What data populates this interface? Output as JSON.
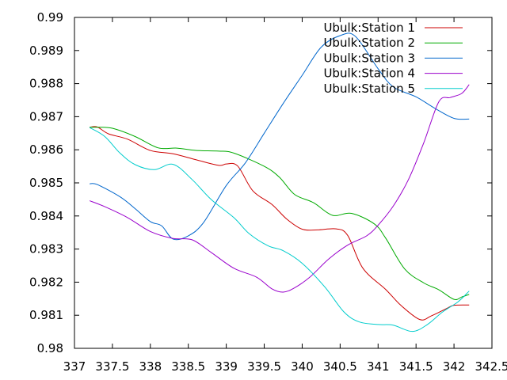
{
  "chart_data": {
    "type": "line",
    "title": "",
    "xlabel": "",
    "ylabel": "",
    "xlim": [
      337,
      342.5
    ],
    "ylim": [
      0.98,
      0.99
    ],
    "x_ticks": [
      "337",
      "337.5",
      "338",
      "338.5",
      "339",
      "339.5",
      "340",
      "340.5",
      "341",
      "341.5",
      "342",
      "342.5"
    ],
    "y_ticks": [
      "0.98",
      "0.981",
      "0.982",
      "0.983",
      "0.984",
      "0.985",
      "0.986",
      "0.987",
      "0.988",
      "0.989",
      "0.99"
    ],
    "grid": false,
    "legend_position": "top-right",
    "series": [
      {
        "name": "Ubulk:Station 1",
        "color": "#cc0000",
        "points": [
          [
            337.2,
            0.98668
          ],
          [
            337.3,
            0.98669
          ],
          [
            337.45,
            0.98648
          ],
          [
            337.7,
            0.98632
          ],
          [
            338.0,
            0.98598
          ],
          [
            338.3,
            0.98588
          ],
          [
            338.6,
            0.9857
          ],
          [
            338.9,
            0.98553
          ],
          [
            339.0,
            0.98557
          ],
          [
            339.15,
            0.98551
          ],
          [
            339.35,
            0.98476
          ],
          [
            339.6,
            0.98435
          ],
          [
            339.8,
            0.9839
          ],
          [
            340.0,
            0.9836
          ],
          [
            340.2,
            0.98358
          ],
          [
            340.45,
            0.98361
          ],
          [
            340.6,
            0.98341
          ],
          [
            340.8,
            0.98242
          ],
          [
            341.1,
            0.98178
          ],
          [
            341.3,
            0.9813
          ],
          [
            341.55,
            0.98087
          ],
          [
            341.7,
            0.98098
          ],
          [
            341.9,
            0.9812
          ],
          [
            342.0,
            0.9813
          ],
          [
            342.2,
            0.98131
          ]
        ]
      },
      {
        "name": "Ubulk:Station 2",
        "color": "#00aa00",
        "points": [
          [
            337.2,
            0.98668
          ],
          [
            337.3,
            0.98668
          ],
          [
            337.5,
            0.98665
          ],
          [
            337.8,
            0.9864
          ],
          [
            338.1,
            0.98606
          ],
          [
            338.35,
            0.98605
          ],
          [
            338.6,
            0.98598
          ],
          [
            338.9,
            0.98596
          ],
          [
            339.1,
            0.9859
          ],
          [
            339.5,
            0.9855
          ],
          [
            339.7,
            0.98517
          ],
          [
            339.9,
            0.98465
          ],
          [
            340.15,
            0.9844
          ],
          [
            340.4,
            0.98402
          ],
          [
            340.65,
            0.98408
          ],
          [
            340.95,
            0.98376
          ],
          [
            341.1,
            0.98333
          ],
          [
            341.35,
            0.9824
          ],
          [
            341.6,
            0.98198
          ],
          [
            341.8,
            0.98177
          ],
          [
            342.0,
            0.98148
          ],
          [
            342.1,
            0.98155
          ],
          [
            342.2,
            0.98163
          ]
        ]
      },
      {
        "name": "Ubulk:Station 3",
        "color": "#0066cc",
        "points": [
          [
            337.2,
            0.98497
          ],
          [
            337.3,
            0.98495
          ],
          [
            337.6,
            0.98458
          ],
          [
            337.8,
            0.98422
          ],
          [
            338.0,
            0.98383
          ],
          [
            338.15,
            0.9837
          ],
          [
            338.3,
            0.9833
          ],
          [
            338.5,
            0.9834
          ],
          [
            338.7,
            0.9838
          ],
          [
            339.0,
            0.98492
          ],
          [
            339.25,
            0.9856
          ],
          [
            339.5,
            0.9865
          ],
          [
            339.75,
            0.9874
          ],
          [
            340.0,
            0.98825
          ],
          [
            340.25,
            0.9891
          ],
          [
            340.5,
            0.98945
          ],
          [
            340.7,
            0.98943
          ],
          [
            341.0,
            0.98845
          ],
          [
            341.2,
            0.9879
          ],
          [
            341.5,
            0.9876
          ],
          [
            341.75,
            0.98725
          ],
          [
            342.0,
            0.98695
          ],
          [
            342.2,
            0.98693
          ]
        ]
      },
      {
        "name": "Ubulk:Station 4",
        "color": "#9900cc",
        "points": [
          [
            337.2,
            0.98446
          ],
          [
            337.4,
            0.98428
          ],
          [
            337.7,
            0.98395
          ],
          [
            338.0,
            0.98353
          ],
          [
            338.3,
            0.98332
          ],
          [
            338.55,
            0.98328
          ],
          [
            338.8,
            0.9829
          ],
          [
            339.1,
            0.98242
          ],
          [
            339.4,
            0.98215
          ],
          [
            339.6,
            0.9818
          ],
          [
            339.75,
            0.9817
          ],
          [
            339.9,
            0.98183
          ],
          [
            340.1,
            0.98215
          ],
          [
            340.35,
            0.9827
          ],
          [
            340.6,
            0.98312
          ],
          [
            340.85,
            0.9834
          ],
          [
            341.0,
            0.98372
          ],
          [
            341.2,
            0.9843
          ],
          [
            341.4,
            0.9851
          ],
          [
            341.6,
            0.9862
          ],
          [
            341.8,
            0.98745
          ],
          [
            341.95,
            0.98758
          ],
          [
            342.1,
            0.9877
          ],
          [
            342.2,
            0.98797
          ]
        ]
      },
      {
        "name": "Ubulk:Station 5",
        "color": "#00cccc",
        "points": [
          [
            337.2,
            0.98667
          ],
          [
            337.4,
            0.9864
          ],
          [
            337.6,
            0.9859
          ],
          [
            337.8,
            0.98555
          ],
          [
            338.05,
            0.9854
          ],
          [
            338.3,
            0.98556
          ],
          [
            338.55,
            0.9851
          ],
          [
            338.8,
            0.9845
          ],
          [
            339.1,
            0.98395
          ],
          [
            339.3,
            0.98347
          ],
          [
            339.55,
            0.9831
          ],
          [
            339.75,
            0.98295
          ],
          [
            340.0,
            0.98257
          ],
          [
            340.3,
            0.98185
          ],
          [
            340.55,
            0.9811
          ],
          [
            340.75,
            0.9808
          ],
          [
            341.0,
            0.98072
          ],
          [
            341.2,
            0.9807
          ],
          [
            341.45,
            0.98051
          ],
          [
            341.65,
            0.98072
          ],
          [
            341.85,
            0.9811
          ],
          [
            342.05,
            0.9814
          ],
          [
            342.2,
            0.98173
          ]
        ]
      }
    ]
  }
}
